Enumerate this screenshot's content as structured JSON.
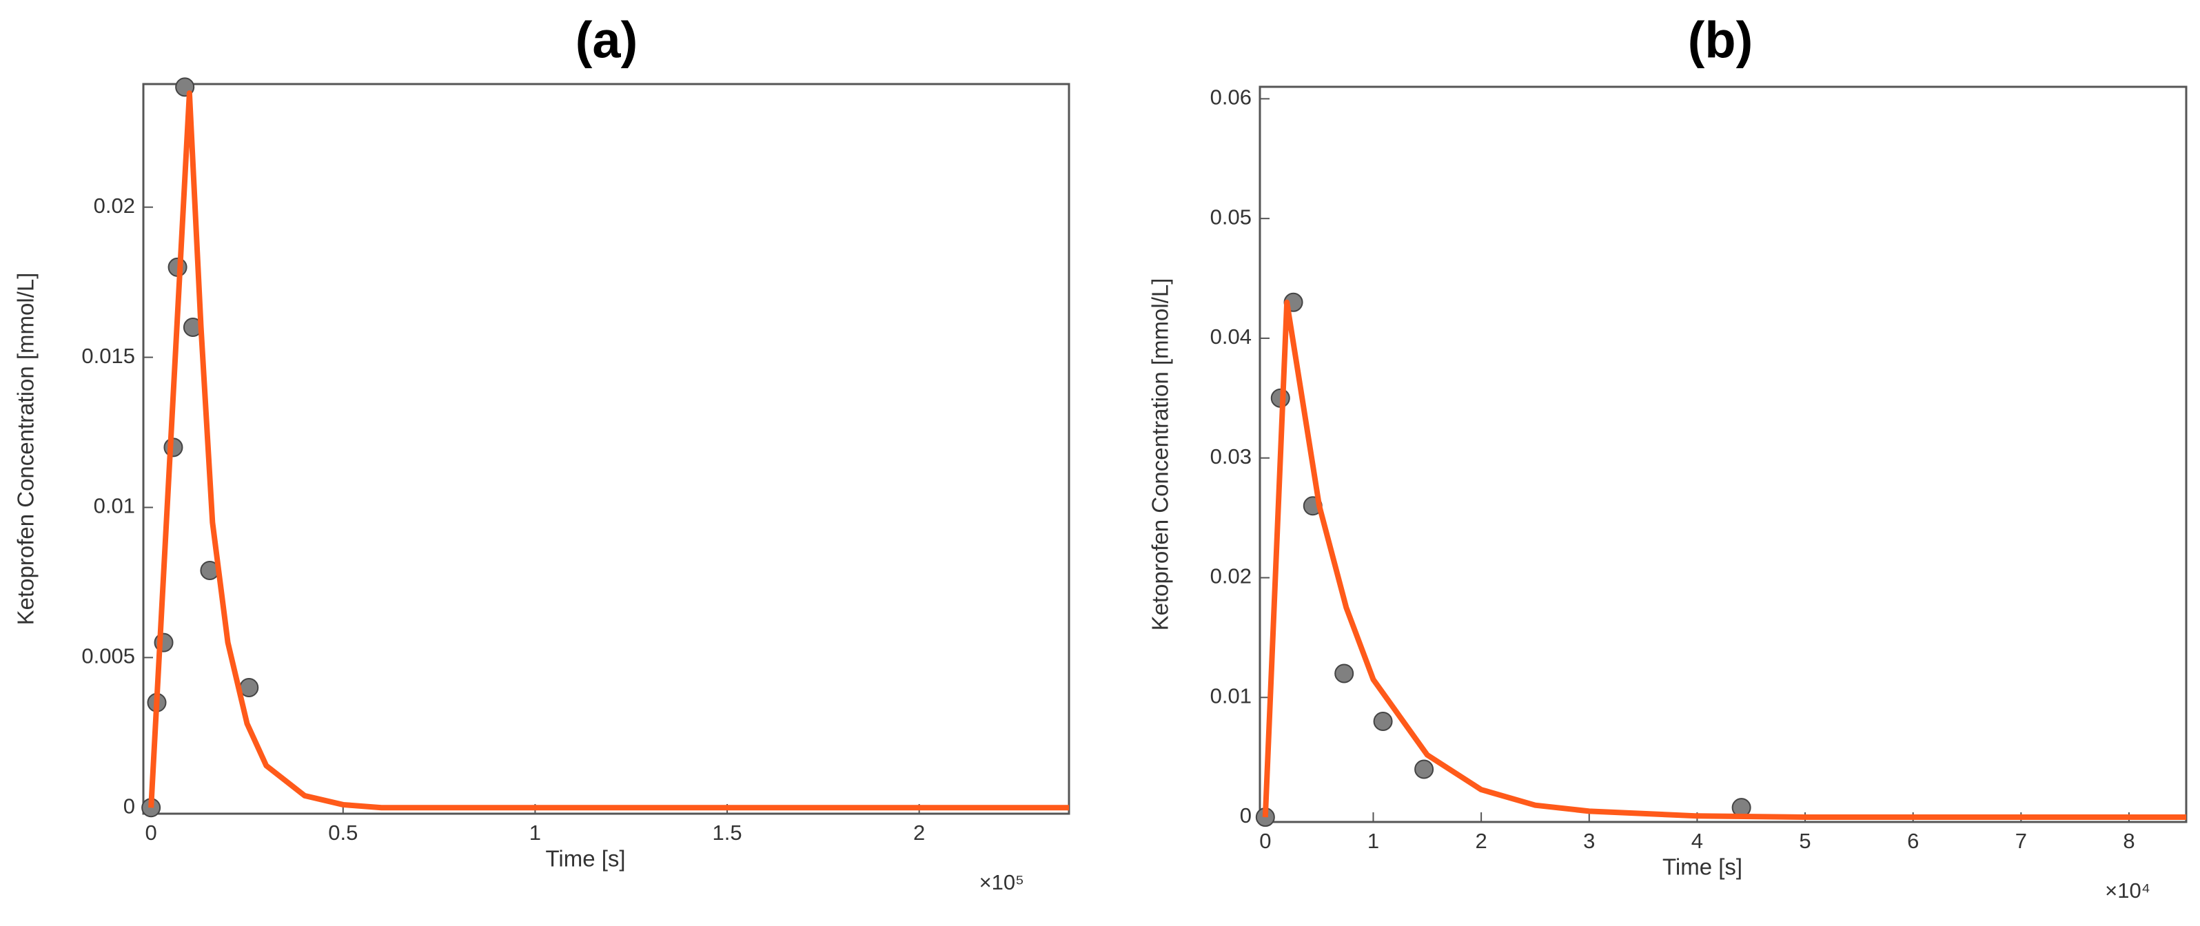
{
  "chart_data": [
    {
      "type": "scatter-line",
      "title": "(a)",
      "x_label": "Time [s]",
      "y_label": "Ketoprofen Concentration [mmol/L]",
      "x_multiplier": "×10⁵",
      "xlim": [
        -0.02,
        2.39
      ],
      "ylim": [
        -0.0002,
        0.0241
      ],
      "xticks": [
        0,
        0.5,
        1,
        1.5,
        2
      ],
      "yticks": [
        0,
        0.005,
        0.01,
        0.015,
        0.02
      ],
      "series": [
        {
          "type": "scatter",
          "color": "#808080",
          "x": [
            0,
            0.015,
            0.033,
            0.058,
            0.069,
            0.088,
            0.109,
            0.153,
            0.255
          ],
          "values": [
            0,
            0.0035,
            0.0055,
            0.012,
            0.018,
            0.024,
            0.016,
            0.0079,
            0.004
          ]
        },
        {
          "type": "line",
          "color": "#ff5a1a",
          "x": [
            0,
            0.1,
            0.13,
            0.16,
            0.2,
            0.25,
            0.3,
            0.4,
            0.5,
            0.6,
            1,
            1.5,
            2,
            2.39
          ],
          "values": [
            0,
            0.0238,
            0.016,
            0.0095,
            0.0055,
            0.0028,
            0.0014,
            0.0004,
            0.0001,
            0,
            0,
            0,
            0,
            0
          ]
        }
      ]
    },
    {
      "type": "scatter-line",
      "title": "(b)",
      "x_label": "Time [s]",
      "y_label": "Ketoprofen Concentration [mmol/L]",
      "x_multiplier": "×10⁴",
      "xlim": [
        -0.05,
        8.53
      ],
      "ylim": [
        -0.0004,
        0.061
      ],
      "xticks": [
        0,
        1,
        2,
        3,
        4,
        5,
        6,
        7,
        8
      ],
      "yticks": [
        0,
        0.01,
        0.02,
        0.03,
        0.04,
        0.05,
        0.06
      ],
      "series": [
        {
          "type": "scatter",
          "color": "#808080",
          "x": [
            0,
            0.14,
            0.26,
            0.44,
            0.73,
            1.09,
            1.47,
            4.41
          ],
          "values": [
            0,
            0.035,
            0.043,
            0.026,
            0.012,
            0.008,
            0.004,
            0.0008
          ]
        },
        {
          "type": "line",
          "color": "#ff5a1a",
          "x": [
            0,
            0.2,
            0.5,
            0.75,
            1,
            1.5,
            2,
            2.5,
            3,
            4,
            5,
            6,
            8,
            8.53
          ],
          "values": [
            0,
            0.043,
            0.026,
            0.0175,
            0.0115,
            0.0052,
            0.0023,
            0.001,
            0.0005,
            0.0001,
            0,
            0,
            0,
            0
          ]
        }
      ]
    }
  ]
}
